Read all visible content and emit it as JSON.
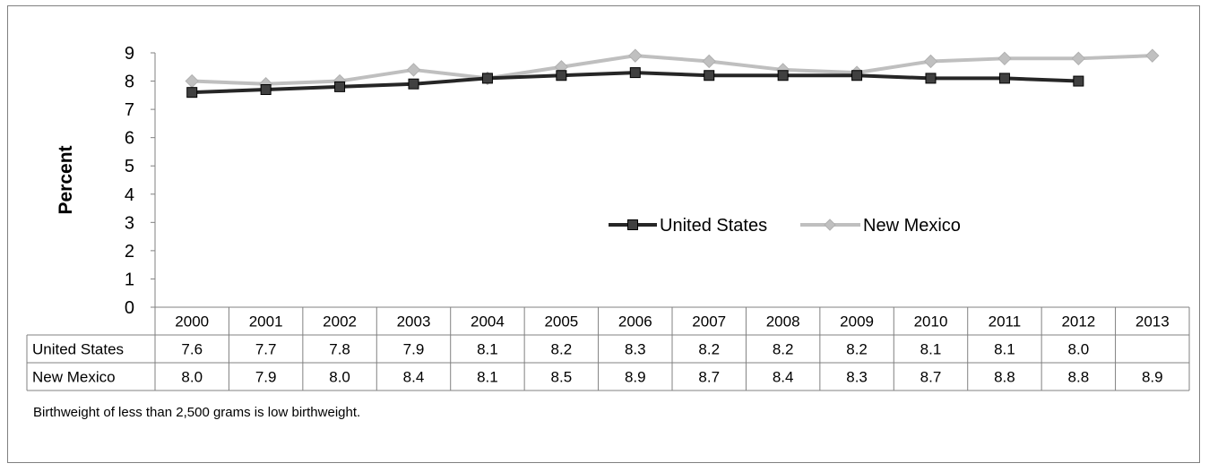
{
  "chart_data": {
    "type": "line",
    "ylabel": "Percent",
    "xlabel": "",
    "ylim": [
      0,
      9
    ],
    "yticks": [
      0,
      1,
      2,
      3,
      4,
      5,
      6,
      7,
      8,
      9
    ],
    "grid": false,
    "legend_position": "center-right",
    "categories": [
      "2000",
      "2001",
      "2002",
      "2003",
      "2004",
      "2005",
      "2006",
      "2007",
      "2008",
      "2009",
      "2010",
      "2011",
      "2012",
      "2013"
    ],
    "series": [
      {
        "name": "United States",
        "color": "#262626",
        "marker": "square",
        "values": [
          7.6,
          7.7,
          7.8,
          7.9,
          8.1,
          8.2,
          8.3,
          8.2,
          8.2,
          8.2,
          8.1,
          8.1,
          8.0,
          null
        ],
        "labels": [
          "7.6",
          "7.7",
          "7.8",
          "7.9",
          "8.1",
          "8.2",
          "8.3",
          "8.2",
          "8.2",
          "8.2",
          "8.1",
          "8.1",
          "8.0",
          ""
        ]
      },
      {
        "name": "New Mexico",
        "color": "#bfbfbf",
        "marker": "diamond",
        "values": [
          8.0,
          7.9,
          8.0,
          8.4,
          8.1,
          8.5,
          8.9,
          8.7,
          8.4,
          8.3,
          8.7,
          8.8,
          8.8,
          8.9
        ],
        "labels": [
          "8.0",
          "7.9",
          "8.0",
          "8.4",
          "8.1",
          "8.5",
          "8.9",
          "8.7",
          "8.4",
          "8.3",
          "8.7",
          "8.8",
          "8.8",
          "8.9"
        ]
      }
    ]
  },
  "footnote": "Birthweight of less than 2,500 grams is low birthweight."
}
